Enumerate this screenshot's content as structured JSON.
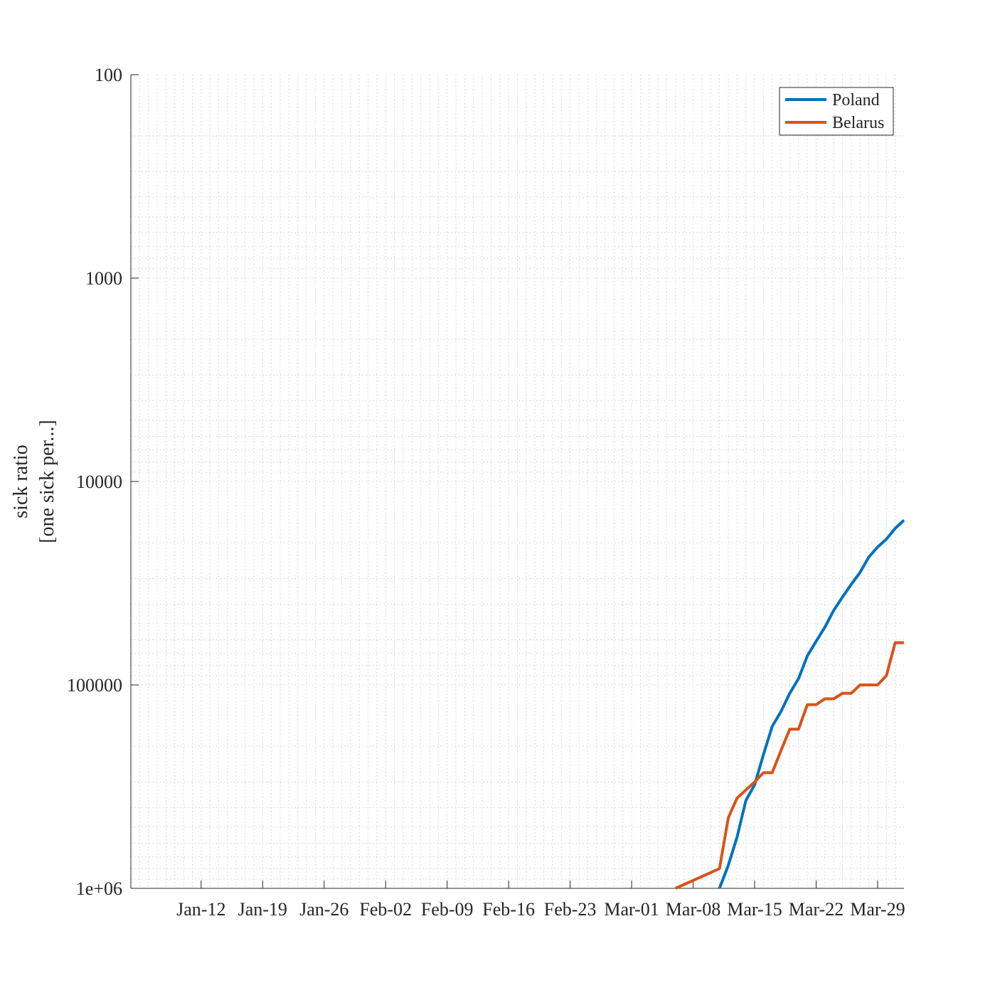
{
  "chart_data": {
    "type": "line",
    "title": "",
    "xlabel": "",
    "ylabel": [
      "sick ratio",
      "[one sick per...]"
    ],
    "y_scale": "log",
    "y_direction": "reversed",
    "ylim": [
      100,
      1000000
    ],
    "y_ticks": [
      {
        "value": 100,
        "label": "100"
      },
      {
        "value": 1000,
        "label": "1000"
      },
      {
        "value": 10000,
        "label": "10000"
      },
      {
        "value": 100000,
        "label": "100000"
      },
      {
        "value": 1000000,
        "label": "1e+06"
      }
    ],
    "xlim": [
      "2020-01-04",
      "2020-04-01"
    ],
    "x_ticks": [
      {
        "value": "2020-01-12",
        "label": "Jan-12"
      },
      {
        "value": "2020-01-19",
        "label": "Jan-19"
      },
      {
        "value": "2020-01-26",
        "label": "Jan-26"
      },
      {
        "value": "2020-02-02",
        "label": "Feb-02"
      },
      {
        "value": "2020-02-09",
        "label": "Feb-09"
      },
      {
        "value": "2020-02-16",
        "label": "Feb-16"
      },
      {
        "value": "2020-02-23",
        "label": "Feb-23"
      },
      {
        "value": "2020-03-01",
        "label": "Mar-01"
      },
      {
        "value": "2020-03-08",
        "label": "Mar-08"
      },
      {
        "value": "2020-03-15",
        "label": "Mar-15"
      },
      {
        "value": "2020-03-22",
        "label": "Mar-22"
      },
      {
        "value": "2020-03-29",
        "label": "Mar-29"
      }
    ],
    "grid": true,
    "legend_position": "top-right",
    "series": [
      {
        "name": "Poland",
        "color": "#0072BD",
        "points": [
          [
            "2020-03-11",
            1000000
          ],
          [
            "2020-03-12",
            770000
          ],
          [
            "2020-03-13",
            560000
          ],
          [
            "2020-03-14",
            370000
          ],
          [
            "2020-03-15",
            310000
          ],
          [
            "2020-03-16",
            220000
          ],
          [
            "2020-03-17",
            160000
          ],
          [
            "2020-03-18",
            135000
          ],
          [
            "2020-03-19",
            110000
          ],
          [
            "2020-03-20",
            93000
          ],
          [
            "2020-03-21",
            72000
          ],
          [
            "2020-03-22",
            61000
          ],
          [
            "2020-03-23",
            52000
          ],
          [
            "2020-03-24",
            43000
          ],
          [
            "2020-03-25",
            37000
          ],
          [
            "2020-03-26",
            32000
          ],
          [
            "2020-03-27",
            28000
          ],
          [
            "2020-03-28",
            23500
          ],
          [
            "2020-03-29",
            21000
          ],
          [
            "2020-03-30",
            19200
          ],
          [
            "2020-03-31",
            17000
          ],
          [
            "2020-04-01",
            15500
          ]
        ]
      },
      {
        "name": "Belarus",
        "color": "#D95319",
        "points": [
          [
            "2020-03-06",
            1000000
          ],
          [
            "2020-03-11",
            800000
          ],
          [
            "2020-03-12",
            450000
          ],
          [
            "2020-03-13",
            360000
          ],
          [
            "2020-03-15",
            300000
          ],
          [
            "2020-03-16",
            270000
          ],
          [
            "2020-03-17",
            270000
          ],
          [
            "2020-03-18",
            210000
          ],
          [
            "2020-03-19",
            165000
          ],
          [
            "2020-03-20",
            165000
          ],
          [
            "2020-03-21",
            125000
          ],
          [
            "2020-03-22",
            125000
          ],
          [
            "2020-03-23",
            117000
          ],
          [
            "2020-03-24",
            117000
          ],
          [
            "2020-03-25",
            110000
          ],
          [
            "2020-03-26",
            110000
          ],
          [
            "2020-03-27",
            100000
          ],
          [
            "2020-03-29",
            100000
          ],
          [
            "2020-03-30",
            90000
          ],
          [
            "2020-03-31",
            62000
          ],
          [
            "2020-04-01",
            62000
          ]
        ]
      }
    ]
  }
}
